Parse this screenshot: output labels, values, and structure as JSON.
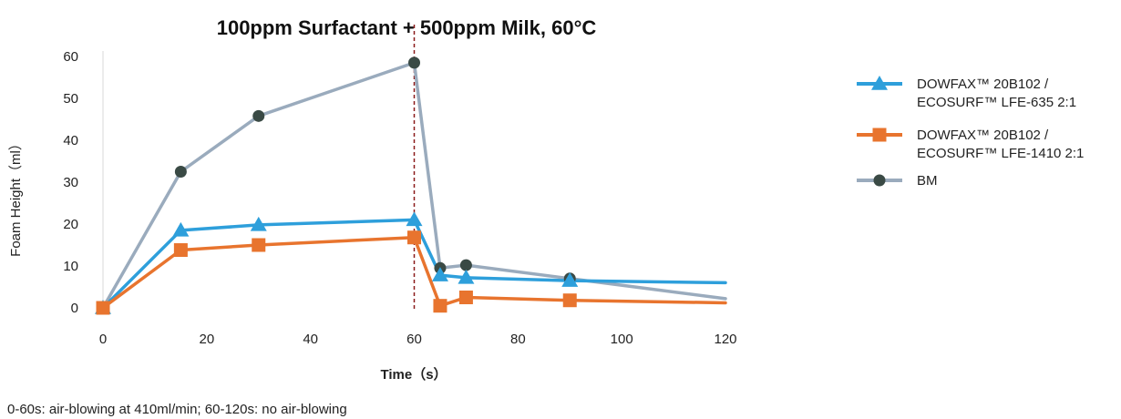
{
  "chart_data": {
    "type": "line",
    "title": "100ppm Surfactant + 500ppm Milk, 60°C",
    "xlabel": "Time（s）",
    "ylabel": "Foam Height（ml）",
    "xlim": [
      0,
      120
    ],
    "ylim": [
      0,
      60
    ],
    "xticks": [
      0,
      20,
      40,
      60,
      80,
      100,
      120
    ],
    "yticks": [
      0,
      10,
      20,
      30,
      40,
      50,
      60
    ],
    "grid": false,
    "legend_position": "right",
    "annotations": [
      {
        "type": "vertical-line",
        "x": 60,
        "style": "dashed",
        "color": "#8B1A1A"
      }
    ],
    "series": [
      {
        "name_lines": [
          "DOWFAX™ 20B102 /",
          "ECOSURF™ LFE-635 2:1"
        ],
        "color": "#2E9FDB",
        "marker": "triangle",
        "points": [
          [
            0,
            0
          ],
          [
            15,
            18.5
          ],
          [
            30,
            19.8
          ],
          [
            60,
            21
          ],
          [
            65,
            7.8
          ],
          [
            70,
            7.2
          ],
          [
            90,
            6.5
          ],
          [
            120,
            6
          ]
        ],
        "marker_x": [
          0,
          15,
          30,
          60,
          65,
          70,
          90
        ]
      },
      {
        "name_lines": [
          "DOWFAX™ 20B102 /",
          "ECOSURF™ LFE-1410 2:1"
        ],
        "color": "#E8742E",
        "marker": "square",
        "points": [
          [
            0,
            0
          ],
          [
            15,
            13.8
          ],
          [
            30,
            15
          ],
          [
            60,
            16.8
          ],
          [
            65,
            0.5
          ],
          [
            70,
            2.5
          ],
          [
            90,
            1.8
          ],
          [
            120,
            1.2
          ]
        ],
        "marker_x": [
          0,
          15,
          30,
          60,
          65,
          70,
          90
        ]
      },
      {
        "name_lines": [
          "BM"
        ],
        "color": "#9AABBD",
        "marker_color": "#3A4A45",
        "marker": "circle",
        "points": [
          [
            0,
            0
          ],
          [
            15,
            32.5
          ],
          [
            30,
            45.8
          ],
          [
            60,
            58.5
          ],
          [
            65,
            9.5
          ],
          [
            70,
            10.2
          ],
          [
            90,
            7
          ],
          [
            120,
            2.2
          ]
        ],
        "marker_x": [
          0,
          15,
          30,
          60,
          65,
          70,
          90
        ]
      }
    ]
  },
  "footnote": "0-60s: air-blowing at 410ml/min; 60-120s: no air-blowing"
}
